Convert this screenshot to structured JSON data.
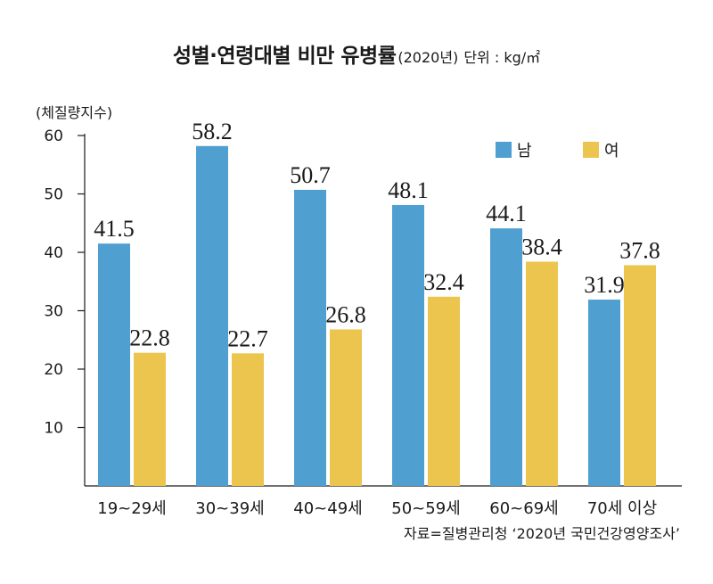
{
  "chart_data": {
    "type": "bar",
    "title": "성별·연령대별 비만 유병률",
    "subtitle": "(2020년)",
    "unit_label": "단위 : kg/㎡",
    "ylabel": "(체질량지수)",
    "xlabel": "",
    "categories": [
      "19~29세",
      "30~39세",
      "40~49세",
      "50~59세",
      "60~69세",
      "70세 이상"
    ],
    "series": [
      {
        "name": "남",
        "values": [
          41.5,
          58.2,
          50.7,
          48.1,
          44.1,
          31.9
        ],
        "color": "#4f9fd0"
      },
      {
        "name": "여",
        "values": [
          22.8,
          22.7,
          26.8,
          32.4,
          38.4,
          37.8
        ],
        "color": "#ecc54f"
      }
    ],
    "ylim": [
      0,
      60
    ],
    "yticks": [
      10,
      20,
      30,
      40,
      50,
      60
    ],
    "grid": false,
    "legend_position": "top-right",
    "source": "자료=질병관리청 ‘2020년 국민건강영양조사’"
  }
}
